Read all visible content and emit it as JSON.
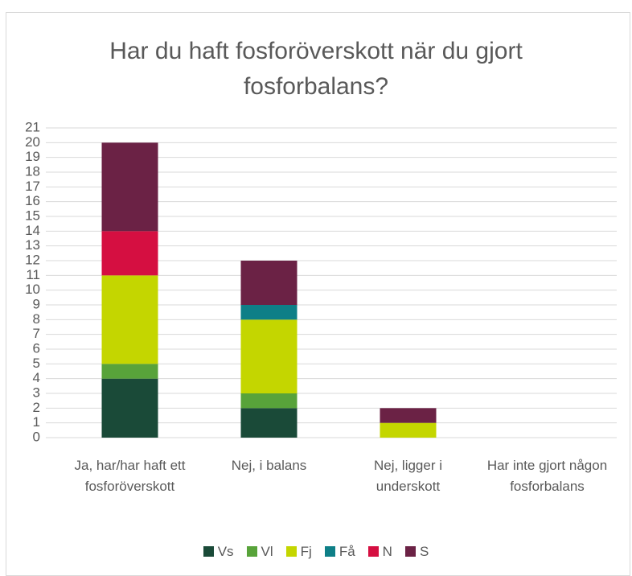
{
  "chart_data": {
    "type": "stacked_bar",
    "title": "Har du haft fosforöverskott när du gjort fosforbalans?",
    "categories": [
      "Ja, har/har haft ett fosforöverskott",
      "Nej, i balans",
      "Nej, ligger i underskott",
      "Har inte gjort någon fosforbalans"
    ],
    "series": [
      {
        "name": "Vs",
        "color": "#1a4a38",
        "values": [
          4,
          2,
          0,
          0
        ]
      },
      {
        "name": "Vl",
        "color": "#58a33a",
        "values": [
          1,
          1,
          0,
          0
        ]
      },
      {
        "name": "Fj",
        "color": "#c4d600",
        "values": [
          6,
          5,
          1,
          0
        ]
      },
      {
        "name": "Få",
        "color": "#0e7f87",
        "values": [
          0,
          1,
          0,
          0
        ]
      },
      {
        "name": "N",
        "color": "#d50f41",
        "values": [
          3,
          0,
          0,
          0
        ]
      },
      {
        "name": "S",
        "color": "#6b2245",
        "values": [
          6,
          3,
          1,
          0
        ]
      }
    ],
    "ylim": [
      0,
      21
    ],
    "yticks": [
      0,
      1,
      2,
      3,
      4,
      5,
      6,
      7,
      8,
      9,
      10,
      11,
      12,
      13,
      14,
      15,
      16,
      17,
      18,
      19,
      20,
      21
    ],
    "grid": true,
    "legend": "bottom"
  }
}
